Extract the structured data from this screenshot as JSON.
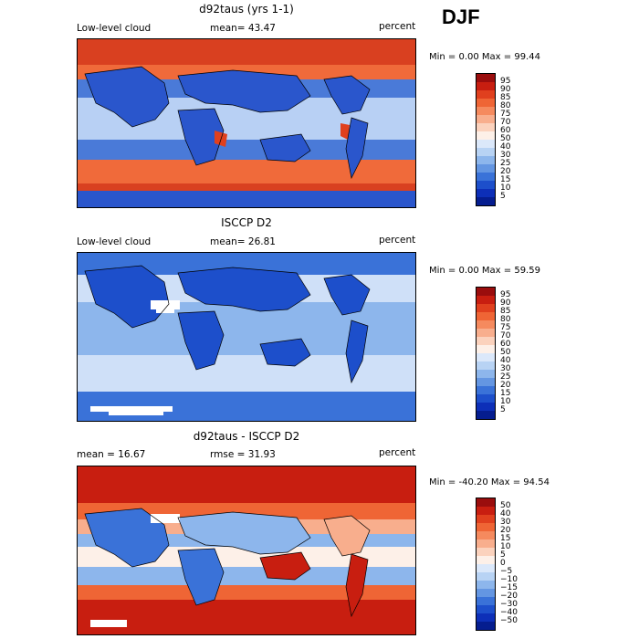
{
  "season": "DJF",
  "panels": [
    {
      "title": "d92taus (yrs 1-1)",
      "left_label": "Low-level cloud",
      "center_label": "mean=  43.47",
      "right_label": "percent",
      "range_label": "Min =    0.00 Max =  99.44",
      "colorbar_ticks": [
        "95",
        "90",
        "85",
        "80",
        "75",
        "70",
        "60",
        "50",
        "40",
        "30",
        "25",
        "20",
        "15",
        "10",
        "5"
      ],
      "colorbar_colors": [
        "#9a0d0d",
        "#c81e10",
        "#e0401e",
        "#ef6535",
        "#f58a5e",
        "#f8ae8d",
        "#fbd2bd",
        "#fdf0e8",
        "#dbe8fa",
        "#b8d3f4",
        "#8db6ec",
        "#6496e2",
        "#3a72d8",
        "#1d4fcb",
        "#0d2fb8",
        "#051d8f"
      ],
      "map_colors": {
        "land": "#2a56cc",
        "ocean_mid": "#4a7ad8",
        "tropics": "#b8d0f4",
        "polar": "#d94020",
        "storm": "#f06a3a",
        "peru": "#e0401e"
      }
    },
    {
      "title": "ISCCP D2",
      "left_label": "Low-level cloud",
      "center_label": "mean=  26.81",
      "right_label": "percent",
      "range_label": "Min =    0.00 Max =  59.59",
      "colorbar_ticks": [
        "95",
        "90",
        "85",
        "80",
        "75",
        "70",
        "60",
        "50",
        "40",
        "30",
        "25",
        "20",
        "15",
        "10",
        "5"
      ],
      "colorbar_colors": [
        "#9a0d0d",
        "#c81e10",
        "#e0401e",
        "#ef6535",
        "#f58a5e",
        "#f8ae8d",
        "#fbd2bd",
        "#fdf0e8",
        "#dbe8fa",
        "#b8d3f4",
        "#8db6ec",
        "#6496e2",
        "#3a72d8",
        "#1d4fcb",
        "#0d2fb8",
        "#051d8f"
      ],
      "map_colors": {
        "land": "#1d4fcb",
        "ocean": "#8db6ec",
        "pale": "#cfe0f8",
        "polar": "#3a72d8",
        "missing": "#ffffff"
      }
    },
    {
      "title": "d92taus - ISCCP D2",
      "left_label": "mean =   16.67",
      "center_label": "rmse =   31.93",
      "right_label": "percent",
      "range_label": "Min = -40.20 Max =  94.54",
      "colorbar_ticks": [
        "50",
        "40",
        "30",
        "20",
        "15",
        "10",
        "5",
        "0",
        "−5",
        "−10",
        "−15",
        "−20",
        "−30",
        "−40",
        "−50"
      ],
      "colorbar_colors": [
        "#9a0d0d",
        "#c81e10",
        "#e0401e",
        "#ef6535",
        "#f58a5e",
        "#f8ae8d",
        "#fbd2bd",
        "#fdf0e8",
        "#dbe8fa",
        "#b8d3f4",
        "#8db6ec",
        "#6496e2",
        "#3a72d8",
        "#1d4fcb",
        "#0d2fb8",
        "#051d8f"
      ],
      "map_colors": {
        "high": "#c81e10",
        "mid": "#ef6535",
        "light": "#f8ae8d",
        "pale": "#fdf0e8",
        "neg": "#8db6ec",
        "negdark": "#3a72d8",
        "missing": "#ffffff"
      }
    }
  ]
}
